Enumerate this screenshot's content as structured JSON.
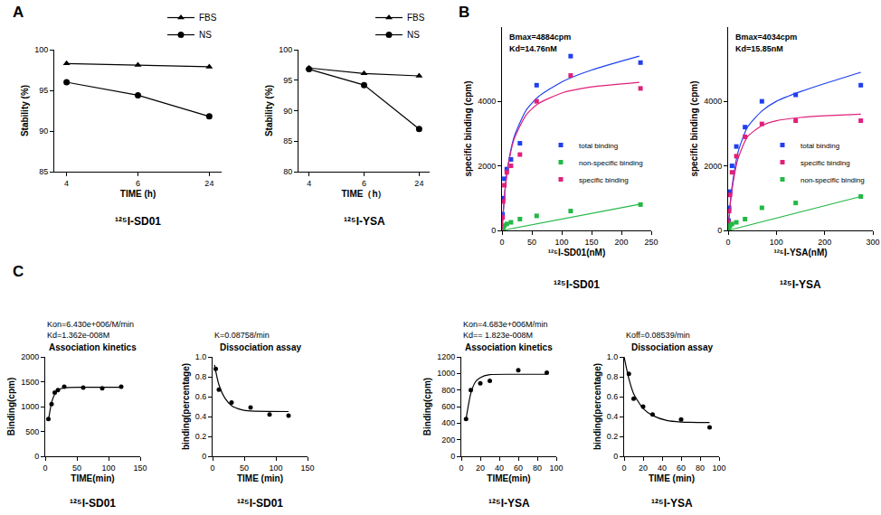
{
  "chart_data": [
    {
      "panel": "A",
      "type": "line",
      "caption": "¹²⁵I-SD01",
      "x_label": "TIME (h)",
      "y_label": "Stability (%)",
      "categories": [
        "4",
        "6",
        "24"
      ],
      "ylim": [
        85,
        100
      ],
      "yticks": [
        85,
        90,
        95,
        100
      ],
      "grid": false,
      "legend": "top right",
      "series": [
        {
          "name": "FBS",
          "color": "#000000",
          "marker": "triangle",
          "values": [
            98.3,
            98.1,
            97.9
          ]
        },
        {
          "name": "NS",
          "color": "#000000",
          "marker": "circle",
          "values": [
            96,
            94.4,
            91.8
          ]
        }
      ]
    },
    {
      "type": "line",
      "caption": "¹²⁵I-YSA",
      "x_label": "TIME（h）",
      "y_label": "Stability (%)",
      "categories": [
        "4",
        "6",
        "24"
      ],
      "ylim": [
        80,
        100
      ],
      "yticks": [
        80,
        85,
        90,
        95,
        100
      ],
      "grid": false,
      "legend": "top right",
      "series": [
        {
          "name": "FBS",
          "color": "#000000",
          "marker": "triangle",
          "values": [
            97,
            96.1,
            95.7
          ]
        },
        {
          "name": "NS",
          "color": "#000000",
          "marker": "circle",
          "values": [
            96.8,
            94.2,
            87
          ]
        }
      ]
    },
    {
      "panel": "B",
      "type": "scatter",
      "caption": "¹²⁵I-SD01",
      "x_label": "¹²⁵I-SD01(nM)",
      "y_label": "specific binding (cpm)",
      "annotations": [
        "Bmax=4884cpm",
        "Kd=14.76nM"
      ],
      "xlim": [
        0,
        250
      ],
      "xticks": [
        0,
        50,
        100,
        150,
        200,
        250
      ],
      "ylim": [
        0,
        6300
      ],
      "yticks": [
        0,
        2000,
        4000
      ],
      "grid": false,
      "legend": "bottom right",
      "series": [
        {
          "name": "total binding",
          "color": "#1f3ff0",
          "marker": "square",
          "x": [
            1,
            2,
            4,
            8,
            15,
            30,
            58,
            115,
            232
          ],
          "values": [
            500,
            1000,
            1600,
            1900,
            2200,
            2700,
            4500,
            5400,
            5200
          ],
          "fit_x": [
            0,
            5,
            10,
            20,
            40,
            60,
            100,
            150,
            230
          ],
          "fit_values": [
            0,
            1255,
            2010,
            2880,
            3710,
            4130,
            4600,
            4970,
            5400
          ]
        },
        {
          "name": "non-specific binding",
          "color": "#22b845",
          "marker": "square",
          "x": [
            1,
            2,
            4,
            8,
            15,
            30,
            58,
            115,
            232
          ],
          "values": [
            50,
            100,
            150,
            200,
            250,
            350,
            450,
            600,
            800
          ],
          "fit_x": [
            0,
            230
          ],
          "fit_values": [
            0,
            810
          ]
        },
        {
          "name": "specific binding",
          "color": "#e0207a",
          "marker": "square",
          "x": [
            1,
            2,
            4,
            8,
            15,
            30,
            58,
            115,
            232
          ],
          "values": [
            400,
            900,
            1400,
            1800,
            2000,
            2350,
            4000,
            4800,
            4400
          ],
          "fit_x": [
            0,
            5,
            10,
            20,
            40,
            60,
            100,
            150,
            230
          ],
          "fit_values": [
            0,
            1237,
            1973,
            2810,
            3568,
            3920,
            4256,
            4446,
            4590
          ]
        }
      ]
    },
    {
      "type": "scatter",
      "caption": "¹²⁵I-YSA",
      "x_label": "¹²⁵I-YSA(nM)",
      "y_label": "specific binding (cpm)",
      "annotations": [
        "Bmax=4034cpm",
        "Kd=15.85nM"
      ],
      "xlim": [
        0,
        300
      ],
      "xticks": [
        0,
        100,
        200,
        300
      ],
      "ylim": [
        0,
        6300
      ],
      "yticks": [
        0,
        2000,
        4000
      ],
      "grid": false,
      "legend": "bottom right",
      "series": [
        {
          "name": "total binding",
          "color": "#1f3ff0",
          "marker": "square",
          "x": [
            1,
            2,
            4,
            8,
            17,
            35,
            70,
            140,
            275
          ],
          "values": [
            300,
            700,
            1200,
            2000,
            2600,
            3200,
            4000,
            4200,
            4500
          ],
          "fit_x": [
            0,
            5,
            10,
            20,
            40,
            70,
            100,
            150,
            200,
            275
          ],
          "fit_values": [
            0,
            950,
            1550,
            2400,
            3200,
            3700,
            4000,
            4300,
            4550,
            4900
          ]
        },
        {
          "name": "specific binding",
          "color": "#e0207a",
          "marker": "square",
          "x": [
            1,
            2,
            4,
            8,
            17,
            35,
            70,
            140,
            275
          ],
          "values": [
            250,
            600,
            1100,
            1800,
            2300,
            2900,
            3300,
            3400,
            3400
          ],
          "fit_x": [
            0,
            5,
            10,
            20,
            40,
            70,
            100,
            150,
            200,
            275
          ],
          "fit_values": [
            0,
            900,
            1450,
            2200,
            2900,
            3250,
            3400,
            3500,
            3550,
            3600
          ]
        },
        {
          "name": "non-specific binding",
          "color": "#22b845",
          "marker": "square",
          "x": [
            1,
            2,
            4,
            8,
            17,
            35,
            70,
            140,
            275
          ],
          "values": [
            50,
            100,
            150,
            200,
            250,
            350,
            700,
            850,
            1050
          ],
          "fit_x": [
            0,
            275
          ],
          "fit_values": [
            0,
            1050
          ]
        }
      ]
    },
    {
      "panel": "C",
      "type": "scatter",
      "caption": "¹²⁵I-SD01",
      "title": "Association kinetics",
      "x_label": "TIME(min)",
      "y_label": "Binding(cpm)",
      "annotations": [
        "Kon=6.430e+006/M/min",
        "Kd=1.362e-008M"
      ],
      "xlim": [
        0,
        150
      ],
      "xticks": [
        0,
        50,
        100,
        150
      ],
      "ylim": [
        0,
        2000
      ],
      "yticks": [
        0,
        500,
        1000,
        1500,
        2000
      ],
      "grid": false,
      "series": [
        {
          "color": "#000000",
          "marker": "circle",
          "x": [
            5,
            10,
            15,
            20,
            30,
            60,
            90,
            120
          ],
          "values": [
            750,
            1050,
            1280,
            1330,
            1400,
            1380,
            1370,
            1400
          ],
          "fit_x": [
            5,
            10,
            15,
            20,
            30,
            60,
            120
          ],
          "fit_values": [
            720,
            1080,
            1250,
            1330,
            1380,
            1390,
            1390
          ]
        }
      ]
    },
    {
      "type": "scatter",
      "caption": "¹²⁵I-SD01",
      "title": "Dissociation assay",
      "x_label": "TIME (min)",
      "y_label": "binding(percentage)",
      "annotations": [
        "K=0.08758/min"
      ],
      "xlim": [
        0,
        150
      ],
      "xticks": [
        0,
        50,
        100,
        150
      ],
      "ylim": [
        0,
        1
      ],
      "yticks": [
        0,
        0.2,
        0.4,
        0.6,
        0.8,
        {
          "value": 1,
          "label": "1.0"
        }
      ],
      "grid": false,
      "series": [
        {
          "color": "#000000",
          "marker": "circle",
          "x": [
            5,
            10,
            30,
            60,
            90,
            120
          ],
          "values": [
            0.88,
            0.67,
            0.54,
            0.49,
            0.42,
            0.41
          ],
          "fit_x": [
            3,
            10,
            20,
            30,
            45,
            60,
            120
          ],
          "fit_values": [
            0.92,
            0.72,
            0.58,
            0.51,
            0.47,
            0.455,
            0.45
          ]
        }
      ]
    },
    {
      "type": "scatter",
      "caption": "¹²⁵I-YSA",
      "title": "Association kinetics",
      "x_label": "TIME(min)",
      "y_label": "Binding(cpm)",
      "annotations": [
        "Kon=4.683e+006M/min",
        "Kd== 1.823e-008M"
      ],
      "xlim": [
        0,
        100
      ],
      "xticks": [
        0,
        20,
        40,
        60,
        80,
        100
      ],
      "ylim": [
        0,
        1200
      ],
      "yticks": [
        0,
        200,
        400,
        600,
        800,
        1000,
        1200
      ],
      "grid": false,
      "series": [
        {
          "color": "#000000",
          "marker": "circle",
          "x": [
            5,
            10,
            20,
            30,
            60,
            90
          ],
          "values": [
            450,
            800,
            880,
            910,
            1040,
            1010
          ],
          "fit_x": [
            5,
            10,
            15,
            20,
            30,
            60,
            90
          ],
          "fit_values": [
            450,
            760,
            900,
            950,
            985,
            990,
            990
          ]
        }
      ]
    },
    {
      "type": "scatter",
      "caption": "¹²⁵I-YSA",
      "title": "Dissociation assay",
      "x_label": "TIME (min)",
      "y_label": "binding(percentage)",
      "annotations": [
        "Koff=0.08539/min"
      ],
      "xlim": [
        0,
        100
      ],
      "xticks": [
        0,
        20,
        40,
        60,
        80,
        100
      ],
      "ylim": [
        0,
        1
      ],
      "yticks": [
        0,
        0.2,
        0.4,
        0.6,
        0.8,
        {
          "value": 1,
          "label": "1.0"
        }
      ],
      "grid": false,
      "series": [
        {
          "color": "#000000",
          "marker": "circle",
          "x": [
            5,
            10,
            20,
            30,
            60,
            90
          ],
          "values": [
            0.83,
            0.58,
            0.5,
            0.42,
            0.37,
            0.29
          ],
          "fit_x": [
            0,
            5,
            10,
            20,
            30,
            45,
            60,
            90
          ],
          "fit_values": [
            1,
            0.78,
            0.63,
            0.48,
            0.41,
            0.36,
            0.345,
            0.34
          ]
        }
      ]
    }
  ]
}
